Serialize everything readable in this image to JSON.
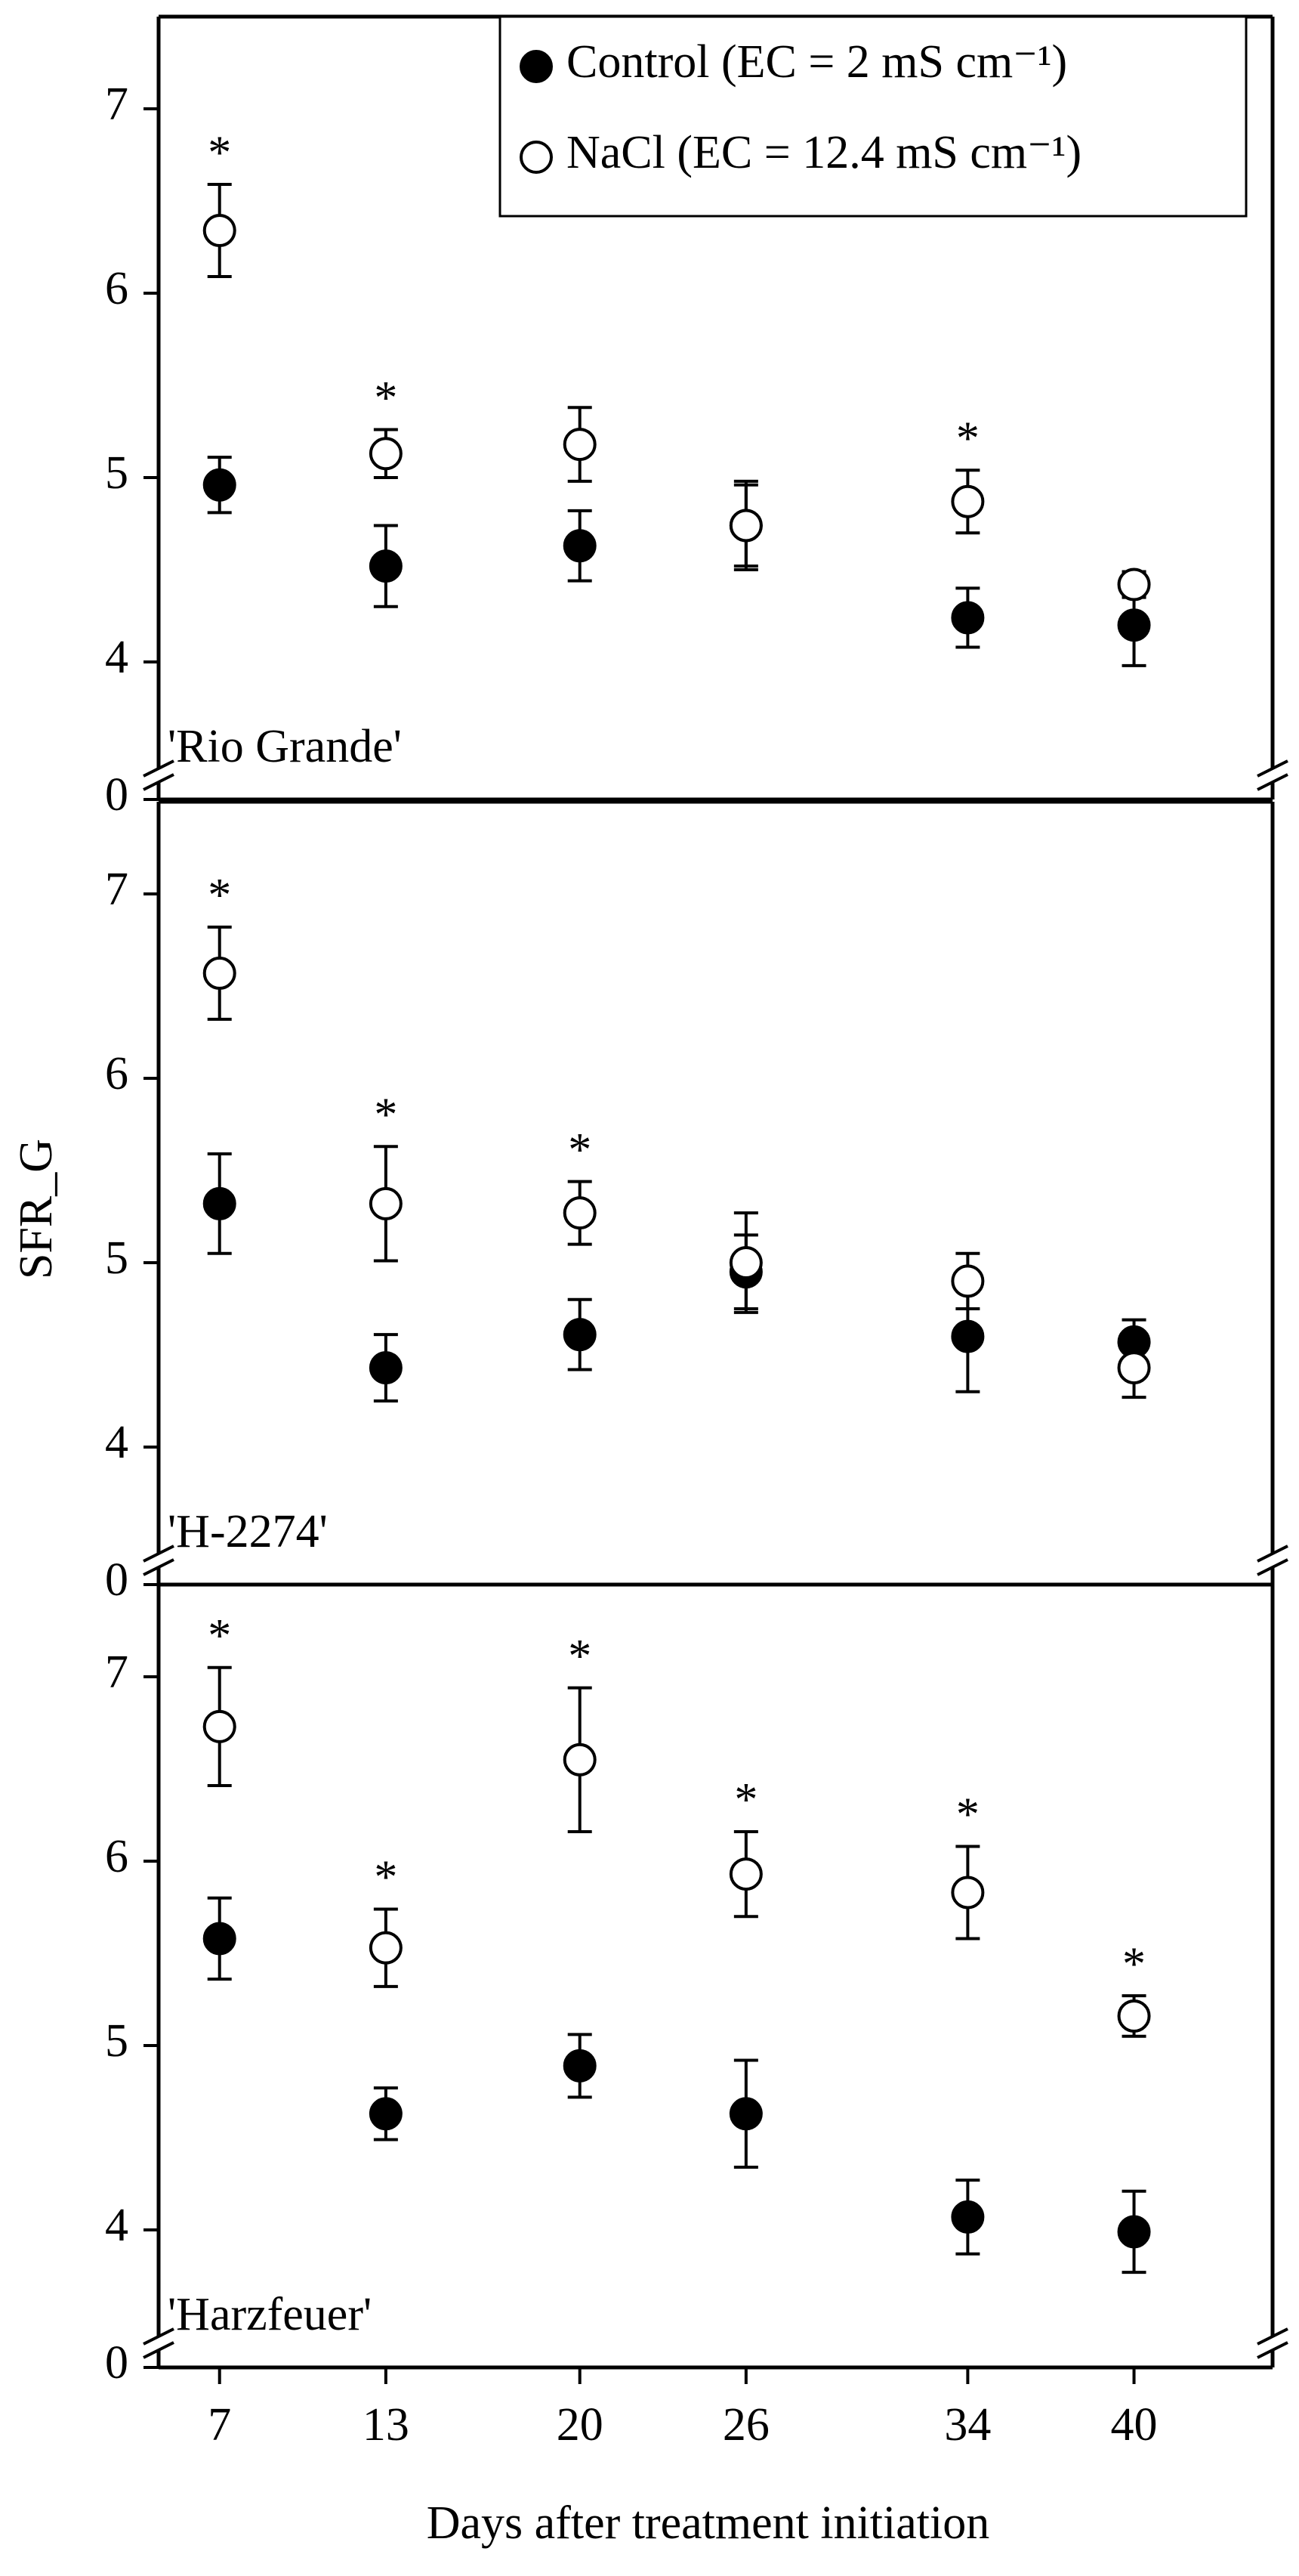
{
  "chart_data": [
    {
      "type": "scatter",
      "label": "'Rio Grande'",
      "legend": "upper right",
      "x": [
        7,
        13,
        20,
        26,
        34,
        40
      ],
      "xlim": [
        4.8,
        45
      ],
      "ylim": [
        0,
        7.5
      ],
      "axis_break": [
        0,
        3.5
      ],
      "yticks": [
        0,
        4,
        5,
        6,
        7
      ],
      "series": [
        {
          "name": "Control (EC = 2 mS cm⁻¹)",
          "color": "#000000",
          "marker_fill": "#000000",
          "values": [
            4.96,
            4.52,
            4.63,
            4.74,
            4.24,
            4.2
          ],
          "errors": [
            0.15,
            0.22,
            0.19,
            0.24,
            0.16,
            0.22
          ]
        },
        {
          "name": "NaCl (EC = 12.4 mS cm⁻¹)",
          "color": "#000000",
          "marker_fill": "#ffffff",
          "values": [
            6.34,
            5.13,
            5.18,
            4.74,
            4.87,
            4.42
          ],
          "errors": [
            0.25,
            0.13,
            0.2,
            0.22,
            0.17,
            0.07
          ]
        }
      ],
      "significance": [
        "*",
        "*",
        null,
        null,
        "*",
        null
      ]
    },
    {
      "type": "scatter",
      "label": "'H-2274'",
      "ylabel": "SFR_G",
      "x": [
        7,
        13,
        20,
        26,
        34,
        40
      ],
      "xlim": [
        4.8,
        45
      ],
      "ylim": [
        0,
        7.5
      ],
      "axis_break": [
        0,
        3.5
      ],
      "yticks": [
        0,
        4,
        5,
        6,
        7
      ],
      "series": [
        {
          "color": "#000000",
          "marker_fill": "#000000",
          "values": [
            5.32,
            4.43,
            4.61,
            4.95,
            4.6,
            4.57
          ],
          "errors": [
            0.27,
            0.18,
            0.19,
            0.2,
            0.3,
            0.12
          ]
        },
        {
          "color": "#000000",
          "marker_fill": "#ffffff",
          "values": [
            6.57,
            5.32,
            5.27,
            5.0,
            4.9,
            4.43
          ],
          "errors": [
            0.25,
            0.31,
            0.17,
            0.27,
            0.15,
            0.16
          ]
        }
      ],
      "significance": [
        "*",
        "*",
        "*",
        null,
        null,
        null
      ]
    },
    {
      "type": "scatter",
      "label": "'Harzfeuer'",
      "xlabel": "Days after treatment initiation",
      "x": [
        7,
        13,
        20,
        26,
        34,
        40
      ],
      "xlim": [
        4.8,
        45
      ],
      "xticks": [
        7,
        13,
        20,
        26,
        34,
        40
      ],
      "ylim": [
        0,
        7.5
      ],
      "axis_break": [
        0,
        3.5
      ],
      "yticks": [
        0,
        4,
        5,
        6,
        7
      ],
      "series": [
        {
          "color": "#000000",
          "marker_fill": "#000000",
          "values": [
            5.58,
            4.63,
            4.89,
            4.63,
            4.07,
            3.99
          ],
          "errors": [
            0.22,
            0.14,
            0.17,
            0.29,
            0.2,
            0.22
          ]
        },
        {
          "color": "#000000",
          "marker_fill": "#ffffff",
          "values": [
            6.73,
            5.53,
            6.55,
            5.93,
            5.83,
            5.16
          ],
          "errors": [
            0.32,
            0.21,
            0.39,
            0.23,
            0.25,
            0.11
          ]
        }
      ],
      "significance": [
        "*",
        "*",
        "*",
        "*",
        "*",
        "*"
      ]
    }
  ]
}
